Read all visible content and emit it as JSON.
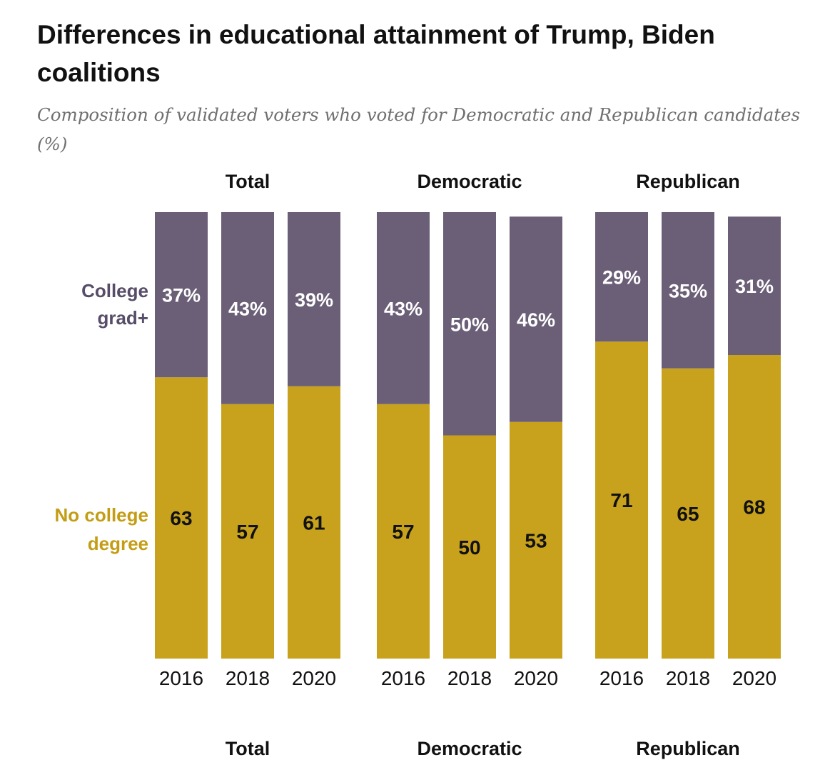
{
  "title": "Differences in educational attainment of Trump, Biden coalitions",
  "subtitle": "Composition of validated voters who voted for Democratic and Republican candidates (%)",
  "colors": {
    "college": "#6b5e77",
    "no_college": "#c8a21c",
    "college_label": "#574d68",
    "no_college_label": "#c49d14"
  },
  "chart_data": {
    "type": "bar",
    "stacked": true,
    "row_labels": {
      "college": [
        "College",
        "grad+"
      ],
      "no_college": [
        "No college",
        "degree"
      ]
    },
    "panels": [
      {
        "name": "Total",
        "categories": [
          "2016",
          "2018",
          "2020"
        ],
        "college": [
          37,
          43,
          39
        ],
        "no_college": [
          63,
          57,
          61
        ],
        "college_labels": [
          "37%",
          "43%",
          "39%"
        ],
        "no_college_labels": [
          "63",
          "57",
          "61"
        ]
      },
      {
        "name": "Democratic",
        "categories": [
          "2016",
          "2018",
          "2020"
        ],
        "college": [
          43,
          50,
          46
        ],
        "no_college": [
          57,
          50,
          53
        ],
        "college_labels": [
          "43%",
          "50%",
          "46%"
        ],
        "no_college_labels": [
          "57",
          "50",
          "53"
        ]
      },
      {
        "name": "Republican",
        "categories": [
          "2016",
          "2018",
          "2020"
        ],
        "college": [
          29,
          35,
          31
        ],
        "no_college": [
          71,
          65,
          68
        ],
        "college_labels": [
          "29%",
          "35%",
          "31%"
        ],
        "no_college_labels": [
          "71",
          "65",
          "68"
        ]
      }
    ]
  }
}
